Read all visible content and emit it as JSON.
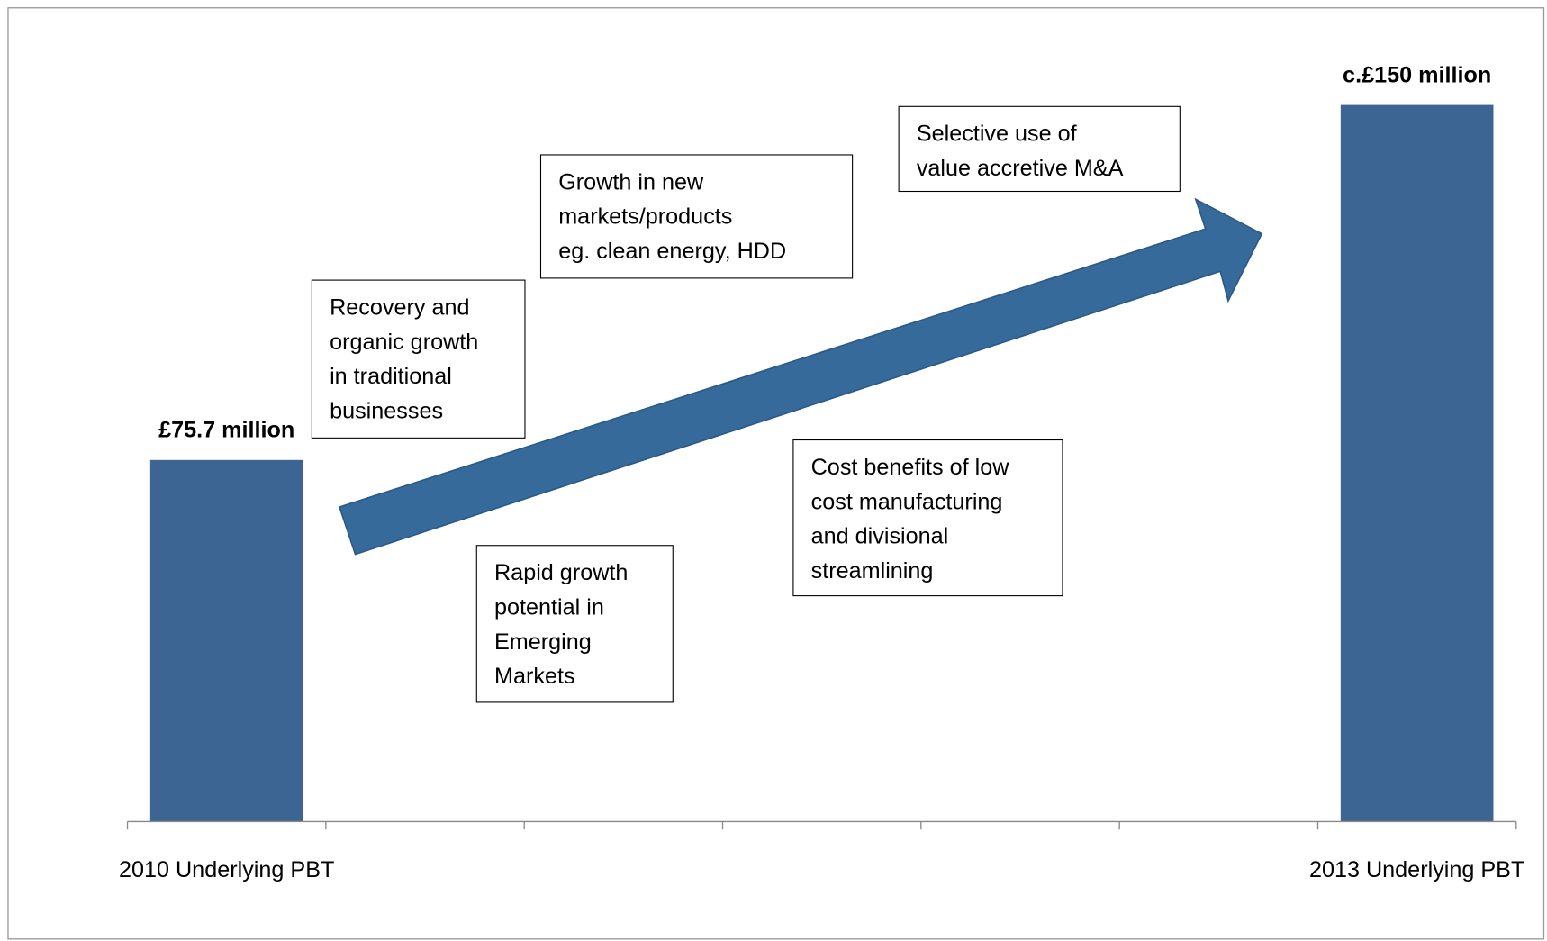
{
  "chart_data": {
    "type": "bar",
    "categories": [
      "2010 Underlying PBT",
      null,
      null,
      null,
      null,
      null,
      "2013 Underlying PBT"
    ],
    "values": [
      75.7,
      null,
      null,
      null,
      null,
      null,
      150
    ],
    "value_labels": [
      "£75.7 million",
      null,
      null,
      null,
      null,
      null,
      "c.£150 million"
    ],
    "color": "#3d6594",
    "ylim": [
      0,
      160
    ],
    "annotations": [
      {
        "lines": [
          "Recovery and",
          "organic growth",
          "in traditional",
          "businesses"
        ]
      },
      {
        "lines": [
          "Growth in new",
          "markets/products",
          "eg. clean energy, HDD"
        ]
      },
      {
        "lines": [
          "Selective use of",
          "value accretive M&A"
        ]
      },
      {
        "lines": [
          "Cost benefits of low",
          "cost manufacturing",
          "and divisional",
          "streamlining"
        ]
      },
      {
        "lines": [
          "Rapid growth",
          "potential in",
          "Emerging",
          "Markets"
        ]
      }
    ]
  }
}
